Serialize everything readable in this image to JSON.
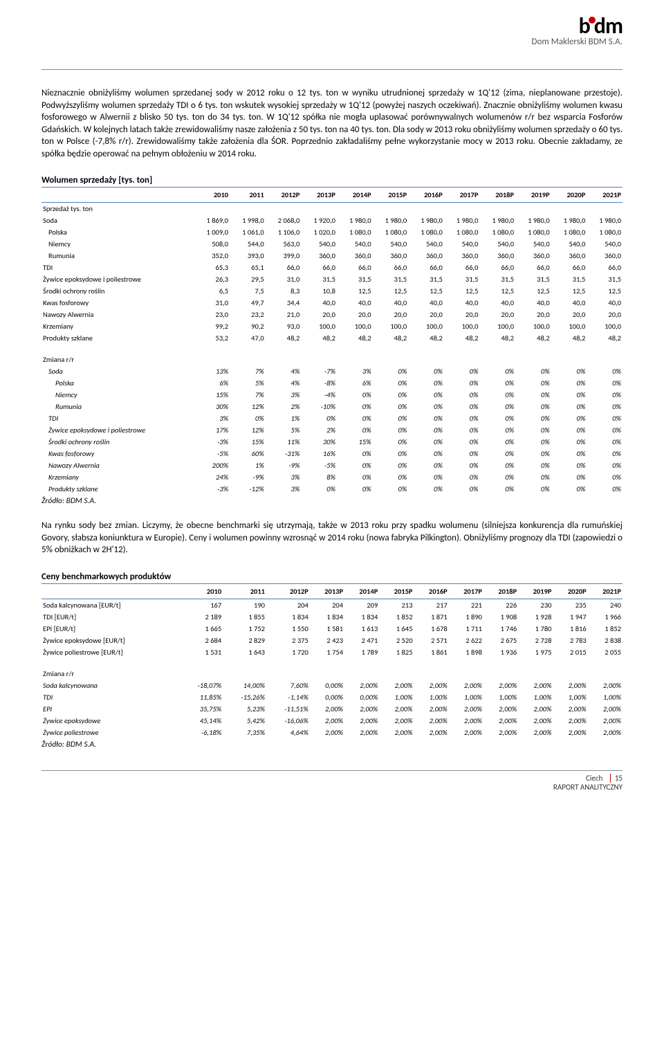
{
  "header": {
    "logo_text_1": "b",
    "logo_text_2": "dm",
    "logo_subtitle": "Dom Maklerski BDM S.A."
  },
  "paragraph1": "Nieznacznie obniżyliśmy wolumen sprzedanej sody w 2012 roku o 12 tys. ton w wyniku utrudnionej sprzedaży w 1Q'12 (zima, nieplanowane przestoje). Podwyższyliśmy wolumen sprzedaży TDI o 6 tys. ton wskutek wysokiej sprzedaży w 1Q'12 (powyżej naszych oczekiwań). Znacznie obniżyliśmy wolumen kwasu fosforowego w Alwernii z blisko 50 tys. ton do 34 tys. ton. W 1Q'12 spółka nie mogła uplasować porównywalnych wolumenów r/r bez wsparcia Fosforów Gdańskich. W kolejnych latach także zrewidowaliśmy nasze założenia z 50 tys. ton na 40 tys. ton. Dla sody w 2013 roku obniżyliśmy wolumen sprzedaży o 60 tys. ton w Polsce (-7,8% r/r). Zrewidowaliśmy także założenia dla ŚOR. Poprzednio zakładaliśmy pełne wykorzystanie mocy w 2013 roku. Obecnie zakładamy, ze spółka będzie operować na pełnym obłożeniu w 2014 roku.",
  "table1": {
    "title": "Wolumen sprzedaży [tys. ton]",
    "years": [
      "2010",
      "2011",
      "2012P",
      "2013P",
      "2014P",
      "2015P",
      "2016P",
      "2017P",
      "2018P",
      "2019P",
      "2020P",
      "2021P"
    ],
    "subhead": "Sprzedaż tys. ton",
    "rows": [
      {
        "label": "Soda",
        "indent": 0,
        "vals": [
          "1 869,0",
          "1 998,0",
          "2 068,0",
          "1 920,0",
          "1 980,0",
          "1 980,0",
          "1 980,0",
          "1 980,0",
          "1 980,0",
          "1 980,0",
          "1 980,0",
          "1 980,0"
        ]
      },
      {
        "label": "Polska",
        "indent": 1,
        "vals": [
          "1 009,0",
          "1 061,0",
          "1 106,0",
          "1 020,0",
          "1 080,0",
          "1 080,0",
          "1 080,0",
          "1 080,0",
          "1 080,0",
          "1 080,0",
          "1 080,0",
          "1 080,0"
        ]
      },
      {
        "label": "Niemcy",
        "indent": 1,
        "vals": [
          "508,0",
          "544,0",
          "563,0",
          "540,0",
          "540,0",
          "540,0",
          "540,0",
          "540,0",
          "540,0",
          "540,0",
          "540,0",
          "540,0"
        ]
      },
      {
        "label": "Rumunia",
        "indent": 1,
        "vals": [
          "352,0",
          "393,0",
          "399,0",
          "360,0",
          "360,0",
          "360,0",
          "360,0",
          "360,0",
          "360,0",
          "360,0",
          "360,0",
          "360,0"
        ]
      },
      {
        "label": "TDI",
        "indent": 0,
        "vals": [
          "65,3",
          "65,1",
          "66,0",
          "66,0",
          "66,0",
          "66,0",
          "66,0",
          "66,0",
          "66,0",
          "66,0",
          "66,0",
          "66,0"
        ]
      },
      {
        "label": "Żywice epoksydowe i poliestrowe",
        "indent": 0,
        "vals": [
          "26,3",
          "29,5",
          "31,0",
          "31,5",
          "31,5",
          "31,5",
          "31,5",
          "31,5",
          "31,5",
          "31,5",
          "31,5",
          "31,5"
        ]
      },
      {
        "label": "Środki ochrony roślin",
        "indent": 0,
        "vals": [
          "6,5",
          "7,5",
          "8,3",
          "10,8",
          "12,5",
          "12,5",
          "12,5",
          "12,5",
          "12,5",
          "12,5",
          "12,5",
          "12,5"
        ]
      },
      {
        "label": "Kwas fosforowy",
        "indent": 0,
        "vals": [
          "31,0",
          "49,7",
          "34,4",
          "40,0",
          "40,0",
          "40,0",
          "40,0",
          "40,0",
          "40,0",
          "40,0",
          "40,0",
          "40,0"
        ]
      },
      {
        "label": "Nawozy Alwernia",
        "indent": 0,
        "vals": [
          "23,0",
          "23,2",
          "21,0",
          "20,0",
          "20,0",
          "20,0",
          "20,0",
          "20,0",
          "20,0",
          "20,0",
          "20,0",
          "20,0"
        ]
      },
      {
        "label": "Krzemiany",
        "indent": 0,
        "vals": [
          "99,2",
          "90,2",
          "93,0",
          "100,0",
          "100,0",
          "100,0",
          "100,0",
          "100,0",
          "100,0",
          "100,0",
          "100,0",
          "100,0"
        ]
      },
      {
        "label": "Produkty szklane",
        "indent": 0,
        "vals": [
          "53,2",
          "47,0",
          "48,2",
          "48,2",
          "48,2",
          "48,2",
          "48,2",
          "48,2",
          "48,2",
          "48,2",
          "48,2",
          "48,2"
        ]
      }
    ],
    "change_head": "Zmiana r/r",
    "change_rows": [
      {
        "label": "Soda",
        "indent": 1,
        "vals": [
          "13%",
          "7%",
          "4%",
          "-7%",
          "3%",
          "0%",
          "0%",
          "0%",
          "0%",
          "0%",
          "0%",
          "0%"
        ]
      },
      {
        "label": "Polska",
        "indent": 2,
        "vals": [
          "6%",
          "5%",
          "4%",
          "-8%",
          "6%",
          "0%",
          "0%",
          "0%",
          "0%",
          "0%",
          "0%",
          "0%"
        ]
      },
      {
        "label": "Niemcy",
        "indent": 2,
        "vals": [
          "15%",
          "7%",
          "3%",
          "-4%",
          "0%",
          "0%",
          "0%",
          "0%",
          "0%",
          "0%",
          "0%",
          "0%"
        ]
      },
      {
        "label": "Rumunia",
        "indent": 2,
        "vals": [
          "30%",
          "12%",
          "2%",
          "-10%",
          "0%",
          "0%",
          "0%",
          "0%",
          "0%",
          "0%",
          "0%",
          "0%"
        ]
      },
      {
        "label": "TDI",
        "indent": 1,
        "vals": [
          "3%",
          "0%",
          "1%",
          "0%",
          "0%",
          "0%",
          "0%",
          "0%",
          "0%",
          "0%",
          "0%",
          "0%"
        ]
      },
      {
        "label": "Żywice epoksydowe i poliestrowe",
        "indent": 1,
        "vals": [
          "17%",
          "12%",
          "5%",
          "2%",
          "0%",
          "0%",
          "0%",
          "0%",
          "0%",
          "0%",
          "0%",
          "0%"
        ]
      },
      {
        "label": "Środki ochrony roślin",
        "indent": 1,
        "vals": [
          "-3%",
          "15%",
          "11%",
          "30%",
          "15%",
          "0%",
          "0%",
          "0%",
          "0%",
          "0%",
          "0%",
          "0%"
        ]
      },
      {
        "label": "Kwas fosforowy",
        "indent": 1,
        "vals": [
          "-5%",
          "60%",
          "-31%",
          "16%",
          "0%",
          "0%",
          "0%",
          "0%",
          "0%",
          "0%",
          "0%",
          "0%"
        ]
      },
      {
        "label": "Nawozy Alwernia",
        "indent": 1,
        "vals": [
          "200%",
          "1%",
          "-9%",
          "-5%",
          "0%",
          "0%",
          "0%",
          "0%",
          "0%",
          "0%",
          "0%",
          "0%"
        ]
      },
      {
        "label": "Krzemiany",
        "indent": 1,
        "vals": [
          "24%",
          "-9%",
          "3%",
          "8%",
          "0%",
          "0%",
          "0%",
          "0%",
          "0%",
          "0%",
          "0%",
          "0%"
        ]
      },
      {
        "label": "Produkty szklane",
        "indent": 1,
        "vals": [
          "-3%",
          "-12%",
          "3%",
          "0%",
          "0%",
          "0%",
          "0%",
          "0%",
          "0%",
          "0%",
          "0%",
          "0%"
        ]
      }
    ],
    "source": "Źródło: BDM S.A."
  },
  "paragraph2": "Na rynku sody bez zmian. Liczymy, że obecne benchmarki się utrzymają, także w 2013 roku przy spadku wolumenu (silniejsza konkurencja dla rumuńskiej Govory, słabsza koniunktura w Europie). Ceny i wolumen powinny wzrosnąć w 2014 roku (nowa fabryka Pilkington). Obniżyliśmy prognozy dla TDI (zapowiedzi o 5% obniżkach w 2H'12).",
  "table2": {
    "title": "Ceny benchmarkowych produktów",
    "years": [
      "2010",
      "2011",
      "2012P",
      "2013P",
      "2014P",
      "2015P",
      "2016P",
      "2017P",
      "2018P",
      "2019P",
      "2020P",
      "2021P"
    ],
    "rows": [
      {
        "label": "Soda kalcynowana [EUR/t]",
        "vals": [
          "167",
          "190",
          "204",
          "204",
          "209",
          "213",
          "217",
          "221",
          "226",
          "230",
          "235",
          "240"
        ]
      },
      {
        "label": "TDI [EUR/t]",
        "vals": [
          "2 189",
          "1 855",
          "1 834",
          "1 834",
          "1 834",
          "1 852",
          "1 871",
          "1 890",
          "1 908",
          "1 928",
          "1 947",
          "1 966"
        ]
      },
      {
        "label": "EPI [EUR/t]",
        "vals": [
          "1 665",
          "1 752",
          "1 550",
          "1 581",
          "1 613",
          "1 645",
          "1 678",
          "1 711",
          "1 746",
          "1 780",
          "1 816",
          "1 852"
        ]
      },
      {
        "label": "Żywice epoksydowe [EUR/t]",
        "vals": [
          "2 684",
          "2 829",
          "2 375",
          "2 423",
          "2 471",
          "2 520",
          "2 571",
          "2 622",
          "2 675",
          "2 728",
          "2 783",
          "2 838"
        ]
      },
      {
        "label": "Żywice poliestrowe [EUR/t]",
        "vals": [
          "1 531",
          "1 643",
          "1 720",
          "1 754",
          "1 789",
          "1 825",
          "1 861",
          "1 898",
          "1 936",
          "1 975",
          "2 015",
          "2 055"
        ]
      }
    ],
    "change_head": "Zmiana r/r",
    "change_rows": [
      {
        "label": "Soda kalcynowana",
        "vals": [
          "-18,07%",
          "14,00%",
          "7,60%",
          "0,00%",
          "2,00%",
          "2,00%",
          "2,00%",
          "2,00%",
          "2,00%",
          "2,00%",
          "2,00%",
          "2,00%"
        ]
      },
      {
        "label": "TDI",
        "vals": [
          "11,85%",
          "-15,26%",
          "-1,14%",
          "0,00%",
          "0,00%",
          "1,00%",
          "1,00%",
          "1,00%",
          "1,00%",
          "1,00%",
          "1,00%",
          "1,00%"
        ]
      },
      {
        "label": "EPI",
        "vals": [
          "35,75%",
          "5,23%",
          "-11,51%",
          "2,00%",
          "2,00%",
          "2,00%",
          "2,00%",
          "2,00%",
          "2,00%",
          "2,00%",
          "2,00%",
          "2,00%"
        ]
      },
      {
        "label": "Żywice epoksydowe",
        "vals": [
          "45,14%",
          "5,42%",
          "-16,06%",
          "2,00%",
          "2,00%",
          "2,00%",
          "2,00%",
          "2,00%",
          "2,00%",
          "2,00%",
          "2,00%",
          "2,00%"
        ]
      },
      {
        "label": "Żywice poliestrowe",
        "vals": [
          "-6,18%",
          "7,35%",
          "4,64%",
          "2,00%",
          "2,00%",
          "2,00%",
          "2,00%",
          "2,00%",
          "2,00%",
          "2,00%",
          "2,00%",
          "2,00%"
        ]
      }
    ],
    "source": "Źródło: BDM S.A."
  },
  "footer": {
    "left": "Ciech",
    "right": "RAPORT ANALITYCZNY",
    "page": "15"
  },
  "colors": {
    "rule": "#4a7fc0",
    "accent": "#c00000",
    "text": "#000000"
  }
}
